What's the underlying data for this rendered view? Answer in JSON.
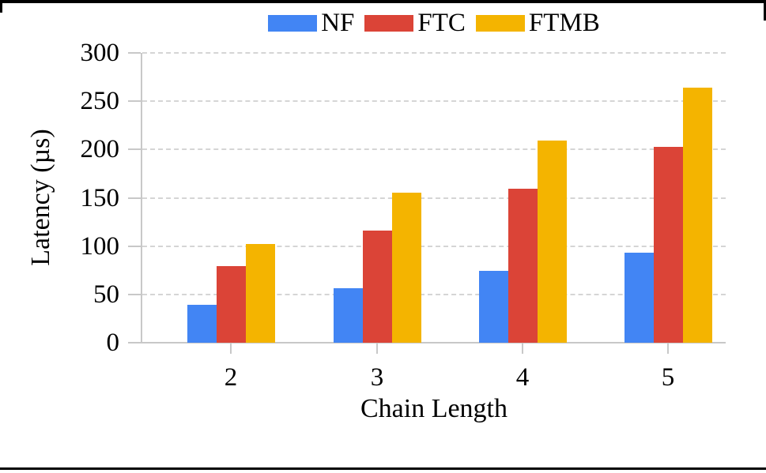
{
  "chart_data": {
    "type": "bar",
    "title": "",
    "categories": [
      "2",
      "3",
      "4",
      "5"
    ],
    "series": [
      {
        "name": "NF",
        "color": "#4285F4",
        "values": [
          39,
          56,
          74,
          93
        ]
      },
      {
        "name": "FTC",
        "color": "#DB4437",
        "values": [
          79,
          116,
          159,
          203
        ]
      },
      {
        "name": "FTMB",
        "color": "#F4B400",
        "values": [
          102,
          155,
          209,
          264
        ]
      }
    ],
    "xlabel": "Chain Length",
    "ylabel": "Latency (µs)",
    "ylim": [
      0,
      300
    ],
    "yticks": [
      0,
      50,
      100,
      150,
      200,
      250,
      300
    ],
    "grid": "horizontal-dashed",
    "legend_position": "top-center",
    "style": {
      "grid_color": "#d5d5d5",
      "axis_color": "#c8c8c8",
      "text_color": "#000000",
      "background": "#ffffff",
      "frame_color": "#000000"
    }
  }
}
